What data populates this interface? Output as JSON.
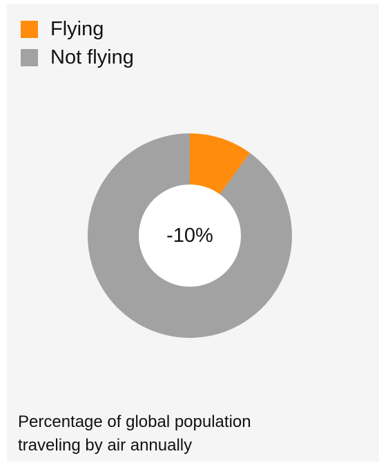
{
  "colors": {
    "flying": "#ff8c0d",
    "not_flying": "#a2a2a2",
    "hole": "#ffffff"
  },
  "chart_data": {
    "type": "pie",
    "style": "donut",
    "categories": [
      "Flying",
      "Not flying"
    ],
    "values": [
      10,
      90
    ],
    "center_label": "-10%",
    "legend_position": "top-left",
    "caption": "Percentage of global population traveling by air annually"
  }
}
